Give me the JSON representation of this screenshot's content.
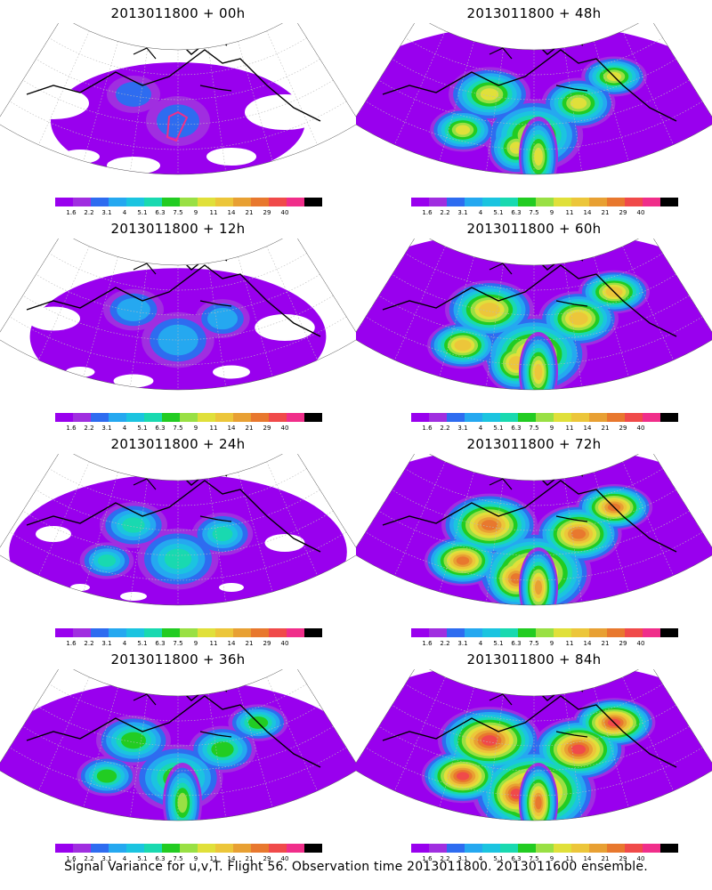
{
  "footer": "Signal Variance for u,v,T. Flight 56. Observation time 2013011800. 2013011600 ensemble.",
  "colorbar": {
    "colors": [
      "#9900ee",
      "#a02ee0",
      "#2e6cf0",
      "#25a8f0",
      "#1bc4e0",
      "#19d9b0",
      "#22cc22",
      "#99e044",
      "#e0e03a",
      "#ecc63a",
      "#e8a033",
      "#e8782e",
      "#f04a4a",
      "#f02e8a",
      "#000000"
    ],
    "labels": [
      "1.6",
      "2.2",
      "3.1",
      "4",
      "5.1",
      "6.3",
      "7.5",
      "9",
      "11",
      "14",
      "21",
      "29",
      "40"
    ]
  },
  "panels": [
    {
      "title": "2013011800 + 00h",
      "level": 0
    },
    {
      "title": "2013011800 + 48h",
      "level": 4
    },
    {
      "title": "2013011800 + 12h",
      "level": 1
    },
    {
      "title": "2013011800 + 60h",
      "level": 5
    },
    {
      "title": "2013011800 + 24h",
      "level": 2
    },
    {
      "title": "2013011800 + 72h",
      "level": 6
    },
    {
      "title": "2013011800 + 36h",
      "level": 3
    },
    {
      "title": "2013011800 + 84h",
      "level": 7
    }
  ]
}
